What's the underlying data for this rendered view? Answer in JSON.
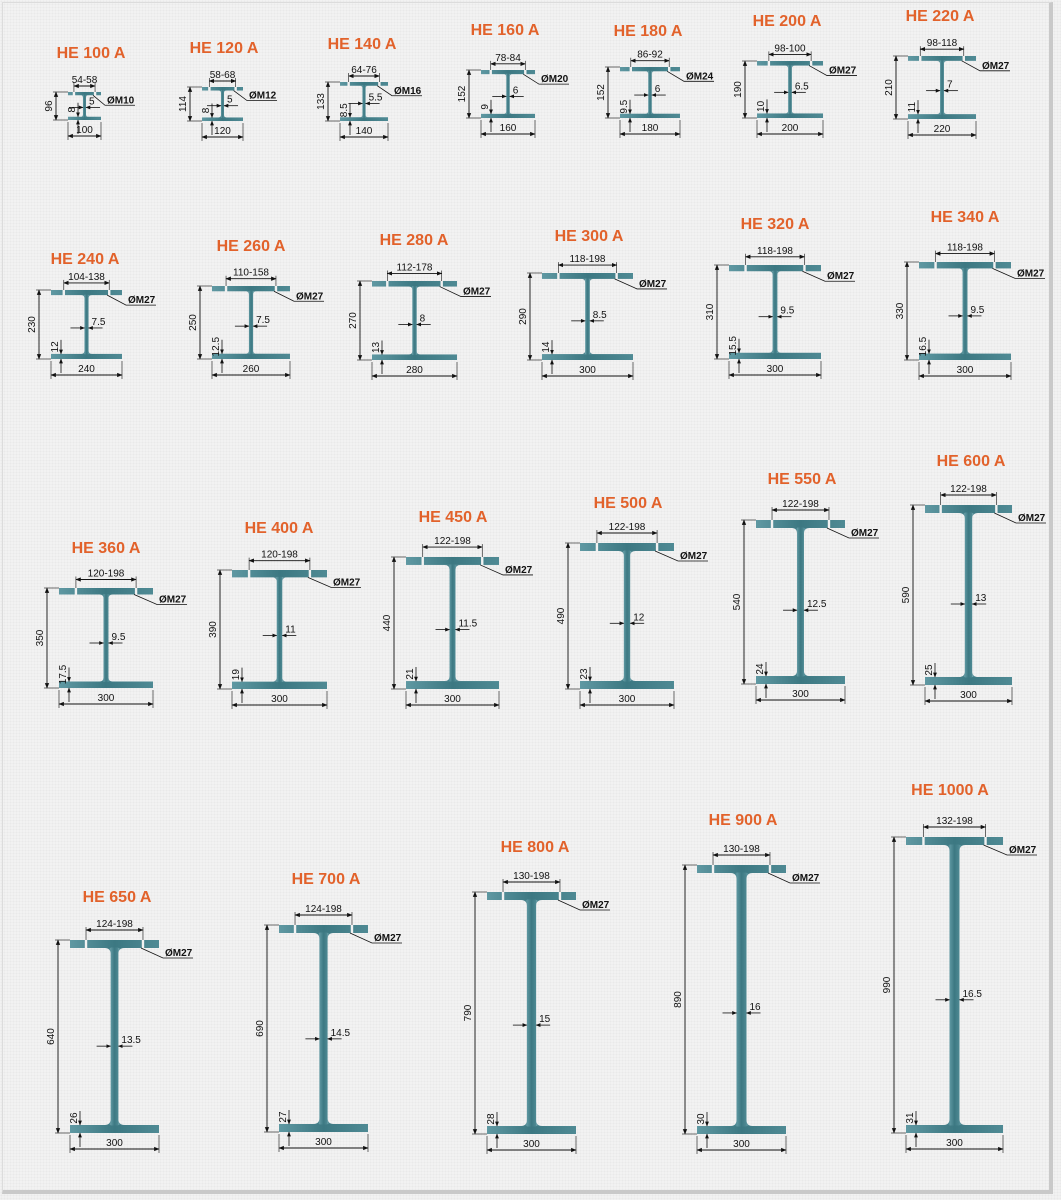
{
  "colors": {
    "steel": "#3f7f8a",
    "steel_light": "#7fb1ba",
    "title": "#e2622b",
    "line": "#111111"
  },
  "profiles": [
    {
      "title": "HE 100 A",
      "h": "96",
      "b": "100",
      "tf": "8",
      "tw": "5",
      "gauge": "54-58",
      "bolt": "ØM10"
    },
    {
      "title": "HE 120 A",
      "h": "114",
      "b": "120",
      "tf": "8",
      "tw": "5",
      "gauge": "58-68",
      "bolt": "ØM12"
    },
    {
      "title": "HE 140 A",
      "h": "133",
      "b": "140",
      "tf": "8.5",
      "tw": "5.5",
      "gauge": "64-76",
      "bolt": "ØM16"
    },
    {
      "title": "HE 160 A",
      "h": "152",
      "b": "160",
      "tf": "9",
      "tw": "6",
      "gauge": "78-84",
      "bolt": "ØM20"
    },
    {
      "title": "HE 180 A",
      "h": "152",
      "b": "180",
      "tf": "9.5",
      "tw": "6",
      "gauge": "86-92",
      "bolt": "ØM24"
    },
    {
      "title": "HE 200 A",
      "h": "190",
      "b": "200",
      "tf": "10",
      "tw": "6.5",
      "gauge": "98-100",
      "bolt": "ØM27"
    },
    {
      "title": "HE 220 A",
      "h": "210",
      "b": "220",
      "tf": "11",
      "tw": "7",
      "gauge": "98-118",
      "bolt": "ØM27"
    },
    {
      "title": "HE 240 A",
      "h": "230",
      "b": "240",
      "tf": "12",
      "tw": "7.5",
      "gauge": "104-138",
      "bolt": "ØM27"
    },
    {
      "title": "HE 260 A",
      "h": "250",
      "b": "260",
      "tf": "12.5",
      "tw": "7.5",
      "gauge": "110-158",
      "bolt": "ØM27"
    },
    {
      "title": "HE 280 A",
      "h": "270",
      "b": "280",
      "tf": "13",
      "tw": "8",
      "gauge": "112-178",
      "bolt": "ØM27"
    },
    {
      "title": "HE 300 A",
      "h": "290",
      "b": "300",
      "tf": "14",
      "tw": "8.5",
      "gauge": "118-198",
      "bolt": "ØM27"
    },
    {
      "title": "HE 320 A",
      "h": "310",
      "b": "300",
      "tf": "15.5",
      "tw": "9.5",
      "gauge": "118-198",
      "bolt": "ØM27"
    },
    {
      "title": "HE 340 A",
      "h": "330",
      "b": "300",
      "tf": "16.5",
      "tw": "9.5",
      "gauge": "118-198",
      "bolt": "ØM27"
    },
    {
      "title": "HE 360 A",
      "h": "350",
      "b": "300",
      "tf": "17.5",
      "tw": "9.5",
      "gauge": "120-198",
      "bolt": "ØM27"
    },
    {
      "title": "HE 400 A",
      "h": "390",
      "b": "300",
      "tf": "19",
      "tw": "11",
      "gauge": "120-198",
      "bolt": "ØM27"
    },
    {
      "title": "HE 450 A",
      "h": "440",
      "b": "300",
      "tf": "21",
      "tw": "11.5",
      "gauge": "122-198",
      "bolt": "ØM27"
    },
    {
      "title": "HE 500 A",
      "h": "490",
      "b": "300",
      "tf": "23",
      "tw": "12",
      "gauge": "122-198",
      "bolt": "ØM27"
    },
    {
      "title": "HE 550 A",
      "h": "540",
      "b": "300",
      "tf": "24",
      "tw": "12.5",
      "gauge": "122-198",
      "bolt": "ØM27"
    },
    {
      "title": "HE 600 A",
      "h": "590",
      "b": "300",
      "tf": "25",
      "tw": "13",
      "gauge": "122-198",
      "bolt": "ØM27"
    },
    {
      "title": "HE 650 A",
      "h": "640",
      "b": "300",
      "tf": "26",
      "tw": "13.5",
      "gauge": "124-198",
      "bolt": "ØM27"
    },
    {
      "title": "HE 700 A",
      "h": "690",
      "b": "300",
      "tf": "27",
      "tw": "14.5",
      "gauge": "124-198",
      "bolt": "ØM27"
    },
    {
      "title": "HE 800 A",
      "h": "790",
      "b": "300",
      "tf": "28",
      "tw": "15",
      "gauge": "130-198",
      "bolt": "ØM27"
    },
    {
      "title": "HE 900 A",
      "h": "890",
      "b": "300",
      "tf": "30",
      "tw": "16",
      "gauge": "130-198",
      "bolt": "ØM27"
    },
    {
      "title": "HE 1000 A",
      "h": "990",
      "b": "300",
      "tf": "31",
      "tw": "16.5",
      "gauge": "132-198",
      "bolt": "ØM27"
    }
  ]
}
